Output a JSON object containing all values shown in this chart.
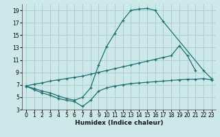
{
  "xlabel": "Humidex (Indice chaleur)",
  "background_color": "#cde8e8",
  "grid_color": "#aacfcf",
  "line_color": "#1a7070",
  "xlim": [
    -0.5,
    23.5
  ],
  "ylim": [
    3,
    20
  ],
  "xticks": [
    0,
    1,
    2,
    3,
    4,
    5,
    6,
    7,
    8,
    9,
    10,
    11,
    12,
    13,
    14,
    15,
    16,
    17,
    18,
    19,
    20,
    21,
    22,
    23
  ],
  "yticks": [
    3,
    5,
    7,
    9,
    11,
    13,
    15,
    17,
    19
  ],
  "curve1_x": [
    0,
    1,
    2,
    3,
    4,
    5,
    6,
    7,
    8,
    9,
    10,
    11,
    12,
    13,
    14,
    15,
    16,
    17,
    22,
    23
  ],
  "curve1_y": [
    6.8,
    6.4,
    6.0,
    5.7,
    5.2,
    4.8,
    4.5,
    5.0,
    6.5,
    10.2,
    13.2,
    15.3,
    17.4,
    19.0,
    19.2,
    19.3,
    19.0,
    17.2,
    9.3,
    8.0
  ],
  "curve2_x": [
    0,
    1,
    2,
    3,
    4,
    5,
    6,
    7,
    8,
    9,
    10,
    11,
    12,
    13,
    14,
    15,
    16,
    17,
    18,
    19,
    20,
    21
  ],
  "curve2_y": [
    6.8,
    7.1,
    7.3,
    7.6,
    7.8,
    8.0,
    8.2,
    8.4,
    8.7,
    9.0,
    9.3,
    9.6,
    9.9,
    10.2,
    10.5,
    10.8,
    11.1,
    11.4,
    11.7,
    13.3,
    11.7,
    9.3
  ],
  "curve3_x": [
    0,
    1,
    2,
    3,
    4,
    5,
    6,
    7,
    8,
    9,
    10,
    11,
    12,
    13,
    14,
    15,
    16,
    17,
    18,
    19,
    20,
    21,
    22,
    23
  ],
  "curve3_y": [
    6.8,
    6.2,
    5.7,
    5.3,
    4.8,
    4.5,
    4.3,
    3.5,
    4.5,
    6.0,
    6.5,
    6.8,
    7.0,
    7.2,
    7.3,
    7.4,
    7.5,
    7.6,
    7.7,
    7.8,
    7.9,
    7.9,
    8.0,
    7.8
  ],
  "xlabel_fontsize": 6.5,
  "tick_fontsize": 5.5
}
